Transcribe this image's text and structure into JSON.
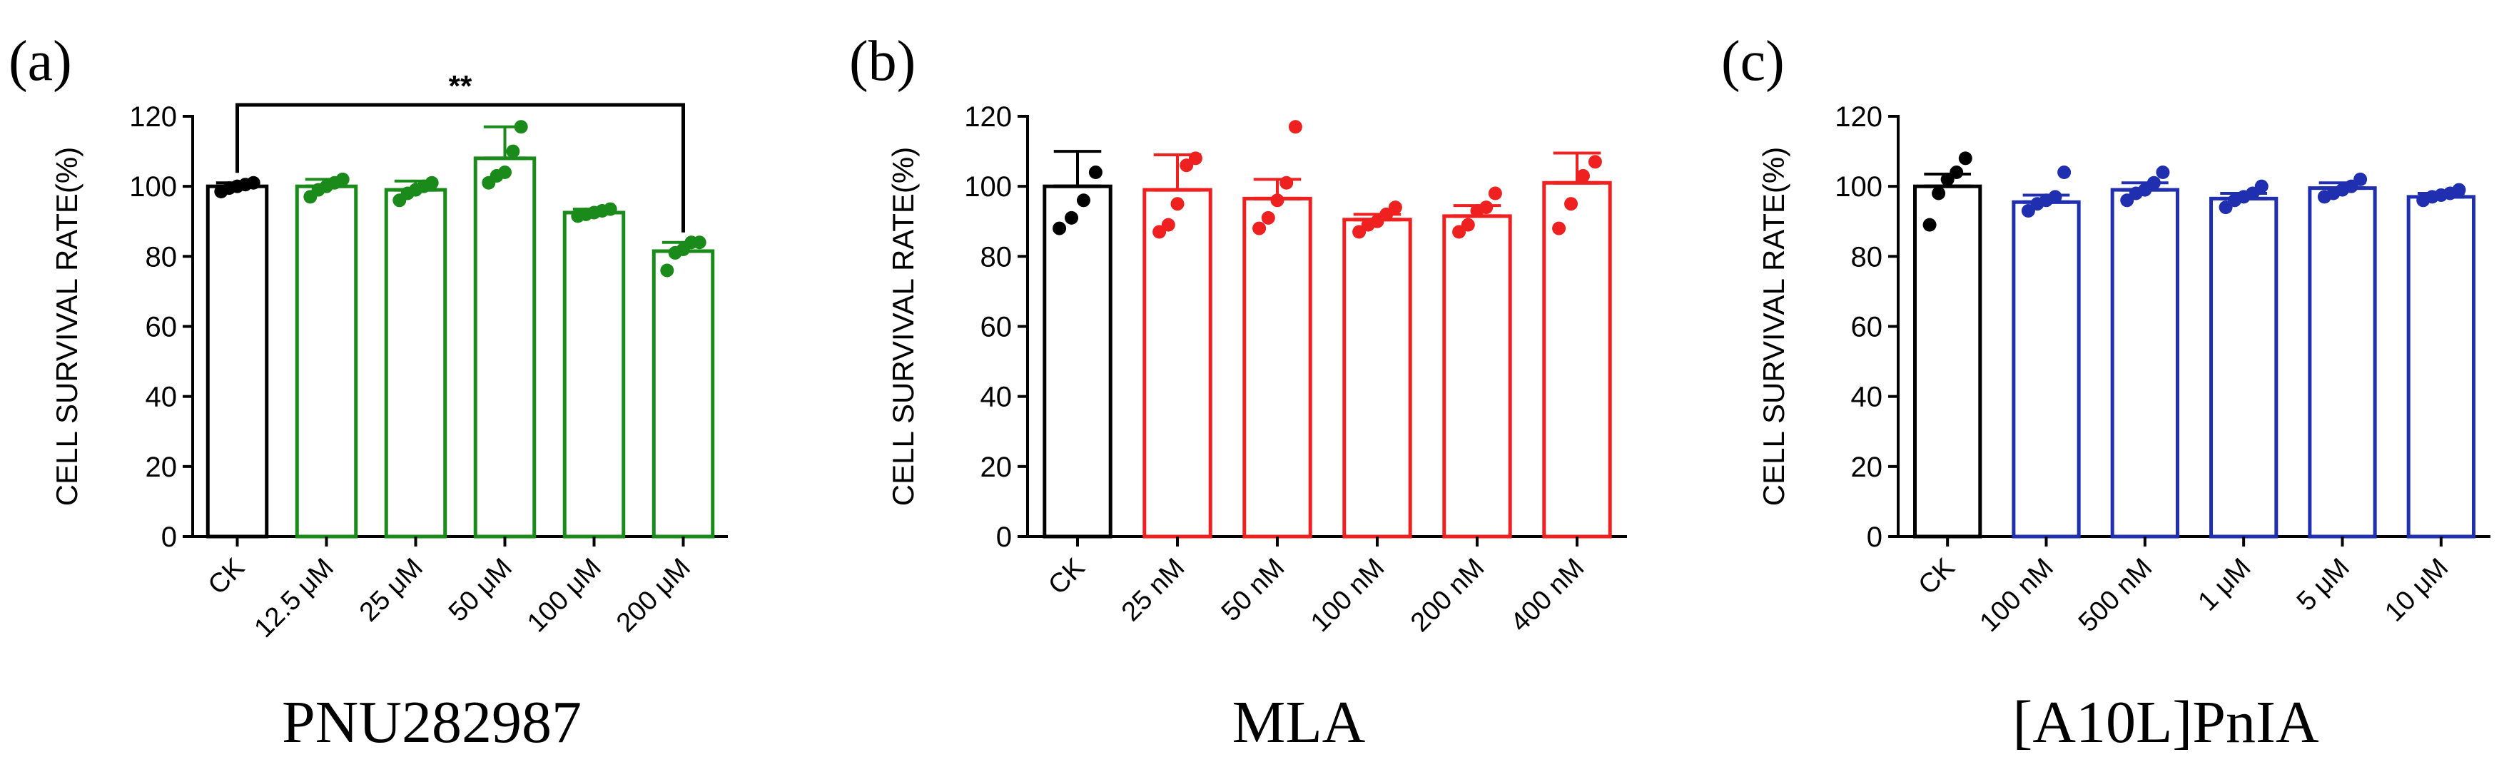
{
  "chart_data": [
    {
      "type": "bar",
      "panel_label": "(a)",
      "title": "PNU282987",
      "xlabel": "",
      "ylabel": "CELL SURVIVAL RATE(%)",
      "ylim": [
        0,
        120
      ],
      "yticks": [
        0,
        20,
        40,
        60,
        80,
        100,
        120
      ],
      "color": "#1a8a1a",
      "control_color": "#000000",
      "categories": [
        "CK",
        "12.5 μM",
        "25  μM",
        "50  μM",
        "100 μM",
        "200 μM"
      ],
      "values": [
        100,
        100,
        99,
        108,
        92.5,
        81.5
      ],
      "errors": [
        1,
        2,
        2.5,
        9,
        1,
        2.5
      ],
      "points": [
        [
          98.5,
          99.5,
          100,
          100.5,
          101
        ],
        [
          97,
          99,
          100,
          101,
          102
        ],
        [
          96,
          98,
          99,
          100,
          101
        ],
        [
          101,
          103,
          104,
          110,
          117
        ],
        [
          91.5,
          92,
          92.5,
          93,
          93.5
        ],
        [
          76,
          81,
          82,
          84,
          84
        ]
      ],
      "significance": {
        "from": "CK",
        "to": "200 μM",
        "label": "**"
      }
    },
    {
      "type": "bar",
      "panel_label": "(b)",
      "title": "MLA",
      "xlabel": "",
      "ylabel": "CELL SURVIVAL RATE(%)",
      "ylim": [
        0,
        120
      ],
      "yticks": [
        0,
        20,
        40,
        60,
        80,
        100,
        120
      ],
      "color": "#ee2020",
      "control_color": "#000000",
      "categories": [
        "CK",
        "25 nM",
        "50 nM",
        "100  nM",
        "200  nM",
        "400 nM"
      ],
      "values": [
        100,
        99,
        96.5,
        90.5,
        91.5,
        101
      ],
      "errors": [
        10,
        10,
        5.5,
        1.5,
        3,
        8.5
      ],
      "points": [
        [
          88,
          91,
          96,
          104
        ],
        [
          87,
          89,
          95,
          106,
          108
        ],
        [
          88,
          91,
          96,
          101,
          117
        ],
        [
          87,
          89,
          90,
          92,
          94
        ],
        [
          87,
          89,
          93,
          94,
          98
        ],
        [
          88,
          95,
          103,
          107
        ]
      ],
      "significance": null
    },
    {
      "type": "bar",
      "panel_label": "(c)",
      "title": "[A10L]PnIA",
      "xlabel": "",
      "ylabel": "CELL SURVIVAL RATE(%)",
      "ylim": [
        0,
        120
      ],
      "yticks": [
        0,
        20,
        40,
        60,
        80,
        100,
        120
      ],
      "color": "#1f2fb0",
      "control_color": "#000000",
      "categories": [
        "CK",
        "100 nM",
        "500 nM",
        "1  μM",
        "5  μM",
        "10  μM"
      ],
      "values": [
        100,
        95.5,
        99,
        96.5,
        99.5,
        97
      ],
      "errors": [
        3.5,
        2,
        2,
        1.5,
        1.5,
        1
      ],
      "points": [
        [
          89,
          98,
          102,
          104,
          108
        ],
        [
          93,
          95,
          96,
          97,
          104
        ],
        [
          96,
          98,
          99,
          101,
          104
        ],
        [
          94,
          96,
          97,
          98,
          100
        ],
        [
          97,
          98,
          99,
          100,
          102
        ],
        [
          96,
          97,
          97.5,
          98,
          99
        ]
      ],
      "significance": null
    }
  ]
}
